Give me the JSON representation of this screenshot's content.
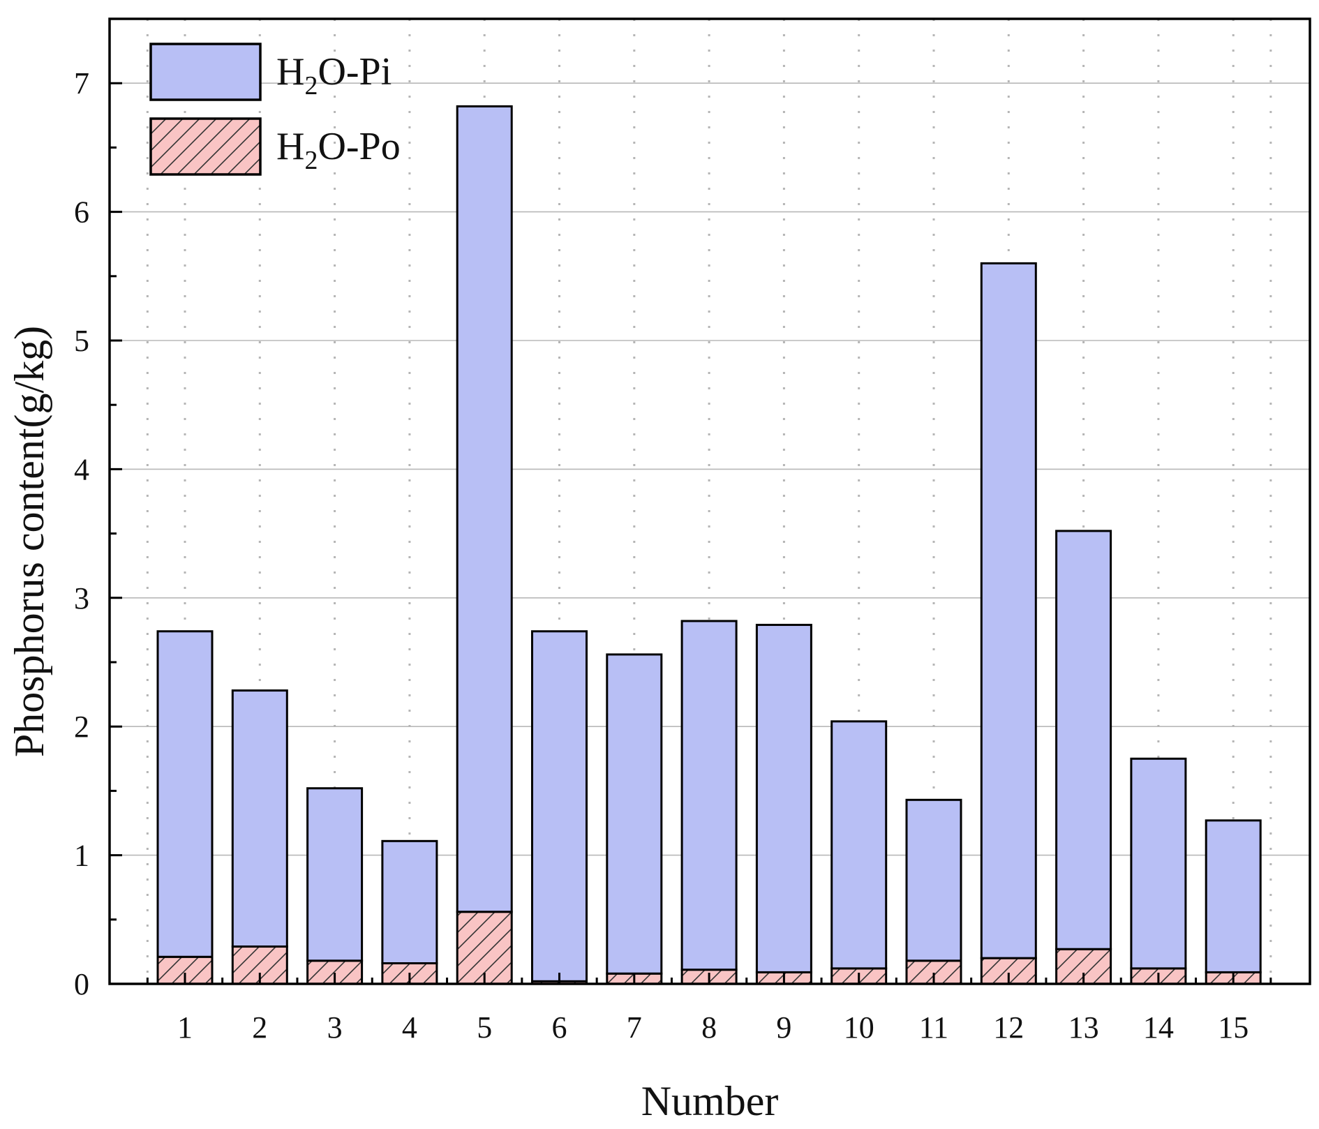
{
  "chart_data": {
    "type": "bar",
    "stacked": true,
    "title": "",
    "xlabel": "Number",
    "ylabel": "Phosphorus content(g/kg)",
    "ylim": [
      0,
      7.5
    ],
    "yticks": [
      "0",
      "1",
      "2",
      "3",
      "4",
      "5",
      "6",
      "7"
    ],
    "categories": [
      "1",
      "2",
      "3",
      "4",
      "5",
      "6",
      "7",
      "8",
      "9",
      "10",
      "11",
      "12",
      "13",
      "14",
      "15"
    ],
    "series": [
      {
        "name_parts": {
          "before": "H",
          "sub": "2",
          "after": "O-Po"
        },
        "color": "#f9c4c4",
        "hatch": true,
        "values": [
          0.21,
          0.29,
          0.18,
          0.16,
          0.56,
          0.02,
          0.08,
          0.11,
          0.09,
          0.12,
          0.18,
          0.2,
          0.27,
          0.12,
          0.09
        ]
      },
      {
        "name_parts": {
          "before": "H",
          "sub": "2",
          "after": "O-Pi"
        },
        "color": "#b8bff5",
        "hatch": false,
        "values": [
          2.53,
          1.99,
          1.34,
          0.95,
          6.26,
          2.72,
          2.48,
          2.71,
          2.7,
          1.92,
          1.25,
          5.4,
          3.25,
          1.63,
          1.18
        ]
      }
    ],
    "grid": true,
    "legend_position": "top-left"
  }
}
